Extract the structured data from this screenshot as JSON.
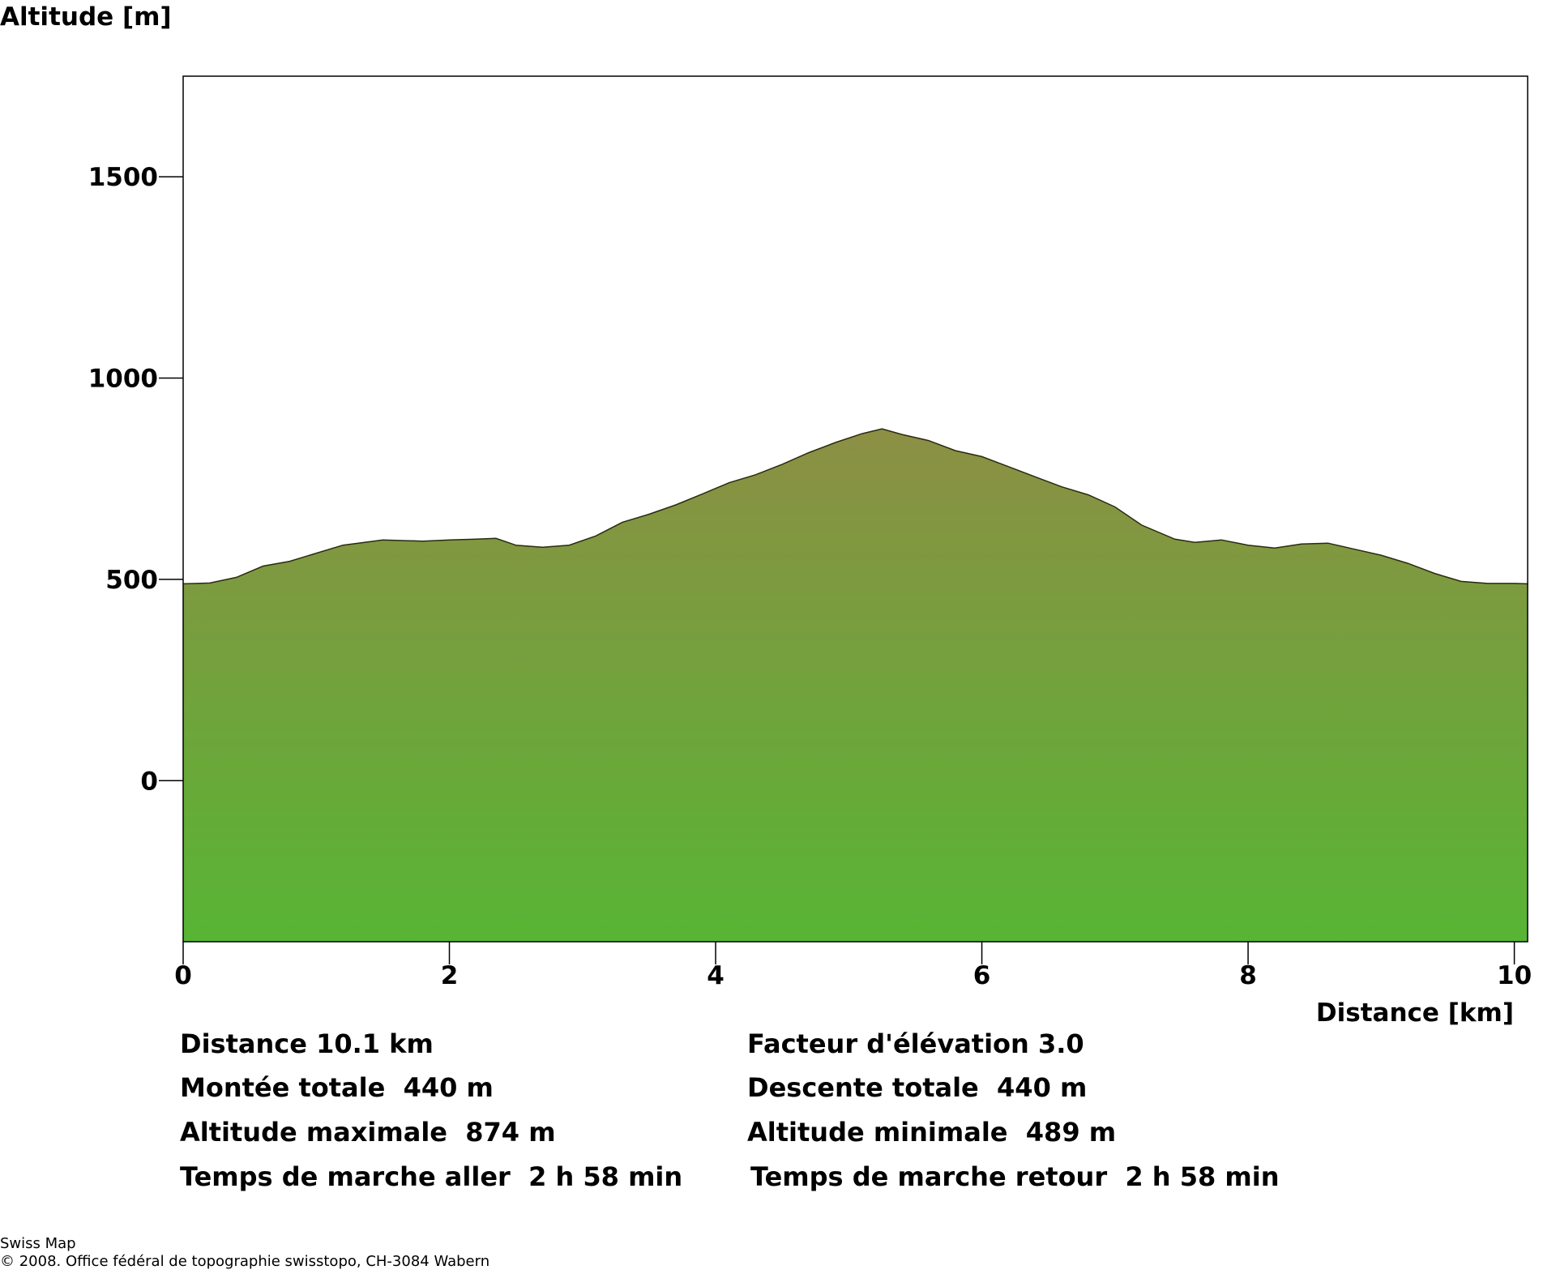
{
  "chart_data": {
    "type": "area",
    "ylabel": "Altitude [m]",
    "xlabel": "Distance [km]",
    "xlim": [
      0,
      10.1
    ],
    "ylim": [
      -400,
      1750
    ],
    "x_ticks": [
      0,
      2,
      4,
      6,
      8,
      10
    ],
    "y_ticks": [
      0,
      500,
      1000,
      1500
    ],
    "grid": false,
    "fill_color_top": "#8c8f44",
    "fill_color_bottom": "#58b534",
    "x": [
      0,
      0.2,
      0.4,
      0.6,
      0.8,
      1.0,
      1.2,
      1.5,
      1.8,
      2.0,
      2.2,
      2.35,
      2.5,
      2.7,
      2.9,
      3.1,
      3.3,
      3.5,
      3.7,
      3.9,
      4.1,
      4.3,
      4.5,
      4.7,
      4.9,
      5.1,
      5.25,
      5.4,
      5.6,
      5.8,
      6.0,
      6.2,
      6.4,
      6.6,
      6.8,
      7.0,
      7.2,
      7.45,
      7.6,
      7.8,
      8.0,
      8.2,
      8.4,
      8.6,
      8.8,
      9.0,
      9.2,
      9.4,
      9.6,
      9.8,
      10.0,
      10.1
    ],
    "y": [
      489,
      491,
      505,
      533,
      545,
      565,
      585,
      598,
      595,
      598,
      600,
      602,
      585,
      580,
      585,
      608,
      642,
      662,
      685,
      712,
      740,
      760,
      786,
      815,
      840,
      862,
      874,
      860,
      845,
      820,
      805,
      780,
      755,
      730,
      710,
      680,
      635,
      600,
      592,
      598,
      585,
      578,
      588,
      590,
      575,
      560,
      540,
      515,
      495,
      490,
      490,
      489
    ]
  },
  "stats": {
    "distance": "Distance 10.1 km",
    "ascent": "Montée totale  440 m",
    "max_alt": "Altitude maximale  874 m",
    "time_out": "Temps de marche aller  2 h 58 min",
    "elevation_factor": "Facteur d'élévation 3.0",
    "descent": "Descente totale  440 m",
    "min_alt": "Altitude minimale  489 m",
    "time_back": "Temps de marche retour  2 h 58 min"
  },
  "credits": {
    "line1": "Swiss Map",
    "line2": "© 2008. Office fédéral de topographie swisstopo, CH-3084 Wabern"
  }
}
